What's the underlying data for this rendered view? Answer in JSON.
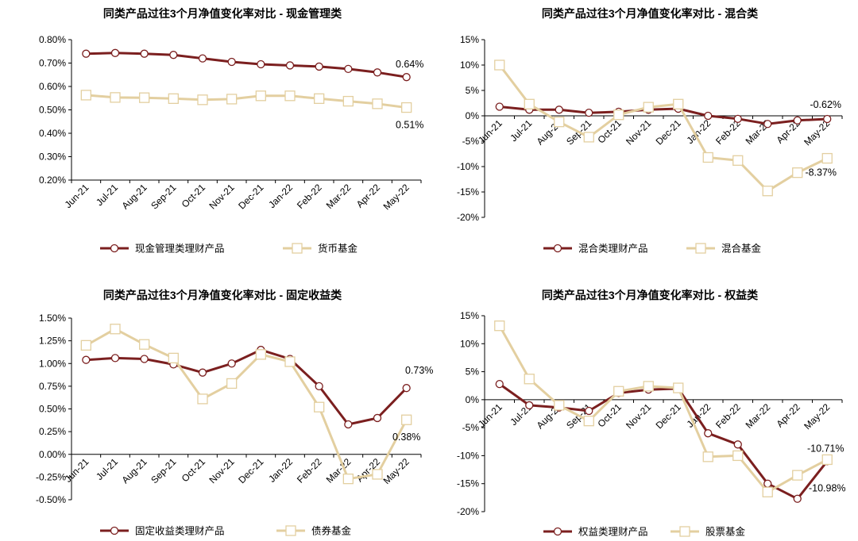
{
  "chart_data": [
    {
      "type": "line",
      "title": "同类产品过往3个月净值变化率对比 - 现金管理类",
      "categories": [
        "Jun-21",
        "Jul-21",
        "Aug-21",
        "Sep-21",
        "Oct-21",
        "Nov-21",
        "Dec-21",
        "Jan-22",
        "Feb-22",
        "Mar-22",
        "Apr-22",
        "May-22"
      ],
      "y_ticks": [
        "0.80%",
        "0.70%",
        "0.60%",
        "0.50%",
        "0.40%",
        "0.30%",
        "0.20%"
      ],
      "ylim": [
        0.2,
        0.8
      ],
      "y_unit": "%",
      "series": [
        {
          "name": "现金管理类理财产品",
          "color": "#7b1f1f",
          "values": [
            0.74,
            0.743,
            0.74,
            0.735,
            0.72,
            0.705,
            0.695,
            0.69,
            0.685,
            0.675,
            0.66,
            0.64
          ]
        },
        {
          "name": "货币基金",
          "color": "#e3cfa0",
          "values": [
            0.563,
            0.553,
            0.552,
            0.548,
            0.543,
            0.546,
            0.56,
            0.56,
            0.548,
            0.537,
            0.526,
            0.51
          ]
        }
      ],
      "annotations": [
        "0.64%",
        "0.51%"
      ],
      "grid": false,
      "legend_position": "bottom"
    },
    {
      "type": "line",
      "title": "同类产品过往3个月净值变化率对比 - 混合类",
      "categories": [
        "Jun-21",
        "Jul-21",
        "Aug-21",
        "Sep-21",
        "Oct-21",
        "Nov-21",
        "Dec-21",
        "Jan-22",
        "Feb-22",
        "Mar-22",
        "Apr-22",
        "May-22"
      ],
      "y_ticks": [
        "15%",
        "10%",
        "5%",
        "0%",
        "-5%",
        "-10%",
        "-15%",
        "-20%"
      ],
      "ylim": [
        -20,
        15
      ],
      "y_unit": "%",
      "series": [
        {
          "name": "混合类理财产品",
          "color": "#7b1f1f",
          "values": [
            1.8,
            1.2,
            1.2,
            0.6,
            0.8,
            1.2,
            1.4,
            0.0,
            -0.6,
            -1.6,
            -0.9,
            -0.62
          ]
        },
        {
          "name": "混合基金",
          "color": "#e3cfa0",
          "values": [
            10.0,
            2.3,
            -1.2,
            -4.2,
            0.2,
            1.7,
            2.3,
            -8.2,
            -8.8,
            -14.8,
            -11.2,
            -8.37
          ]
        }
      ],
      "annotations": [
        "-0.62%",
        "-8.37%"
      ],
      "grid": false,
      "legend_position": "bottom"
    },
    {
      "type": "line",
      "title": "同类产品过往3个月净值变化率对比 - 固定收益类",
      "categories": [
        "Jun-21",
        "Jul-21",
        "Aug-21",
        "Sep-21",
        "Oct-21",
        "Nov-21",
        "Dec-21",
        "Jan-22",
        "Feb-22",
        "Mar-22",
        "Apr-22",
        "May-22"
      ],
      "y_ticks": [
        "1.50%",
        "1.25%",
        "1.00%",
        "0.75%",
        "0.50%",
        "0.25%",
        "0.00%",
        "-0.25%",
        "-0.50%"
      ],
      "ylim": [
        -0.5,
        1.5
      ],
      "y_unit": "%",
      "series": [
        {
          "name": "固定收益类理财产品",
          "color": "#7b1f1f",
          "values": [
            1.04,
            1.06,
            1.05,
            0.99,
            0.9,
            1.0,
            1.15,
            1.05,
            0.75,
            0.33,
            0.4,
            0.73
          ]
        },
        {
          "name": "债券基金",
          "color": "#e3cfa0",
          "values": [
            1.2,
            1.38,
            1.21,
            1.06,
            0.61,
            0.78,
            1.1,
            1.02,
            0.52,
            -0.27,
            -0.22,
            0.38
          ]
        }
      ],
      "annotations": [
        "0.73%",
        "0.38%"
      ],
      "grid": false,
      "legend_position": "bottom"
    },
    {
      "type": "line",
      "title": "同类产品过往3个月净值变化率对比 - 权益类",
      "categories": [
        "Jun-21",
        "Jul-21",
        "Aug-21",
        "Sep-21",
        "Oct-21",
        "Nov-21",
        "Dec-21",
        "Jan-22",
        "Feb-22",
        "Mar-22",
        "Apr-22",
        "May-22"
      ],
      "y_ticks": [
        "15%",
        "10%",
        "5%",
        "0%",
        "-5%",
        "-10%",
        "-15%",
        "-20%"
      ],
      "ylim": [
        -20,
        15
      ],
      "y_unit": "%",
      "series": [
        {
          "name": "权益类理财产品",
          "color": "#7b1f1f",
          "values": [
            2.8,
            -1.0,
            -1.4,
            -2.0,
            1.2,
            1.8,
            2.0,
            -6.0,
            -8.0,
            -15.0,
            -17.7,
            -10.98
          ]
        },
        {
          "name": "股票基金",
          "color": "#e3cfa0",
          "values": [
            13.2,
            3.7,
            -1.0,
            -3.8,
            1.5,
            2.4,
            2.1,
            -10.2,
            -10.0,
            -16.5,
            -13.5,
            -10.71
          ]
        }
      ],
      "annotations": [
        "-10.71%",
        "-10.98%"
      ],
      "grid": false,
      "legend_position": "bottom"
    }
  ]
}
